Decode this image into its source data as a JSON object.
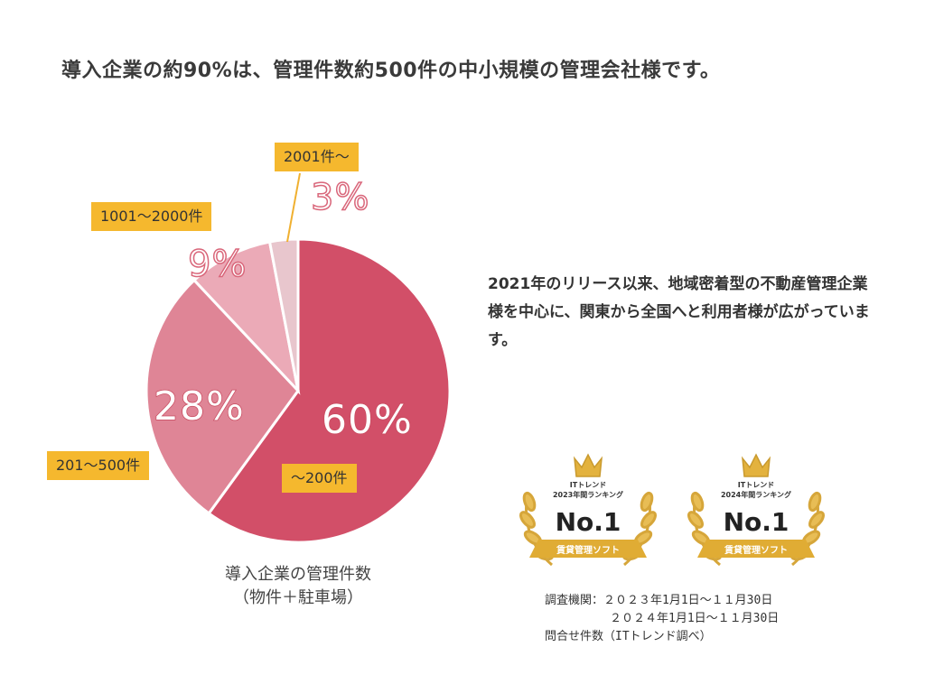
{
  "headline": "導入企業の約90%は、管理件数約500件の中小規模の管理会社様です。",
  "chart_data": {
    "type": "pie",
    "title": "",
    "caption_lines": [
      "導入企業の管理件数",
      "（物件＋駐車場）"
    ],
    "slices": [
      {
        "label": "～200件",
        "value": 60,
        "value_label": "60%",
        "color": "#d24f68"
      },
      {
        "label": "201～500件",
        "value": 28,
        "value_label": "28%",
        "color": "#df8596"
      },
      {
        "label": "1001～2000件",
        "value": 9,
        "value_label": "9%",
        "color": "#ebaab7"
      },
      {
        "label": "2001件～",
        "value": 3,
        "value_label": "3%",
        "color": "#e8c6cd"
      }
    ]
  },
  "description": "2021年のリリース以来、地域密着型の不動産管理企業様を中心に、関東から全国へと利用者様が広がっています。",
  "awards": [
    {
      "line1": "ITトレンド",
      "line2": "2023年間ランキング",
      "rank": "No.1",
      "ribbon": "賃貸管理ソフト"
    },
    {
      "line1": "ITトレンド",
      "line2": "2024年間ランキング",
      "rank": "No.1",
      "ribbon": "賃貸管理ソフト"
    }
  ],
  "source": {
    "label": "調査機関：",
    "period1": "２０２３年1月1日～１１月30日",
    "period2": "２０２４年1月1日～１１月30日",
    "note": "問合せ件数（ITトレンド調べ）"
  },
  "colors": {
    "tag": "#f5b82e",
    "leader": "#f0b030",
    "gold": "#c99a2e"
  }
}
